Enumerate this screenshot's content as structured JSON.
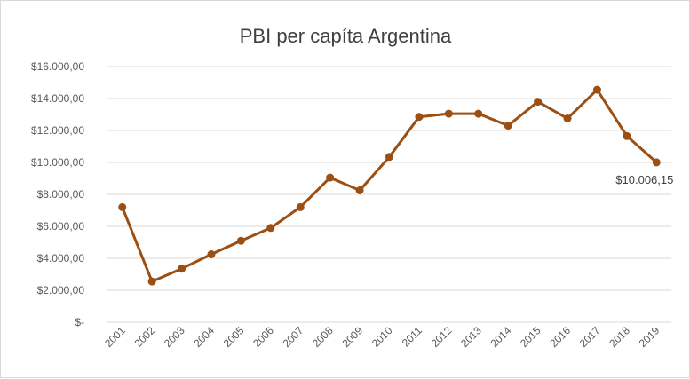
{
  "chart_data": {
    "type": "line",
    "title": "PBI per capíta Argentina",
    "xlabel": "",
    "ylabel": "",
    "categories": [
      "2001",
      "2002",
      "2003",
      "2004",
      "2005",
      "2006",
      "2007",
      "2008",
      "2009",
      "2010",
      "2011",
      "2012",
      "2013",
      "2014",
      "2015",
      "2016",
      "2017",
      "2018",
      "2019"
    ],
    "series": [
      {
        "values": [
          7200,
          2550,
          3350,
          4250,
          5100,
          5900,
          7200,
          9050,
          8250,
          10350,
          12850,
          13050,
          13050,
          12300,
          13800,
          12750,
          14550,
          11650,
          10006.15
        ]
      }
    ],
    "ylim": [
      0,
      16000
    ],
    "y_ticks": [
      {
        "value": 0,
        "label": "$-"
      },
      {
        "value": 2000,
        "label": "$2.000,00"
      },
      {
        "value": 4000,
        "label": "$4.000,00"
      },
      {
        "value": 6000,
        "label": "$6.000,00"
      },
      {
        "value": 8000,
        "label": "$8.000,00"
      },
      {
        "value": 10000,
        "label": "$10.000,00"
      },
      {
        "value": 12000,
        "label": "$12.000,00"
      },
      {
        "value": 14000,
        "label": "$14.000,00"
      },
      {
        "value": 16000,
        "label": "$16.000,00"
      }
    ],
    "grid": true,
    "legend": "none",
    "line_color": "#9c4f13",
    "gridline_color": "#d9d9d9",
    "annotations": [
      {
        "category": "2019",
        "label": "$10.006,15"
      }
    ]
  }
}
